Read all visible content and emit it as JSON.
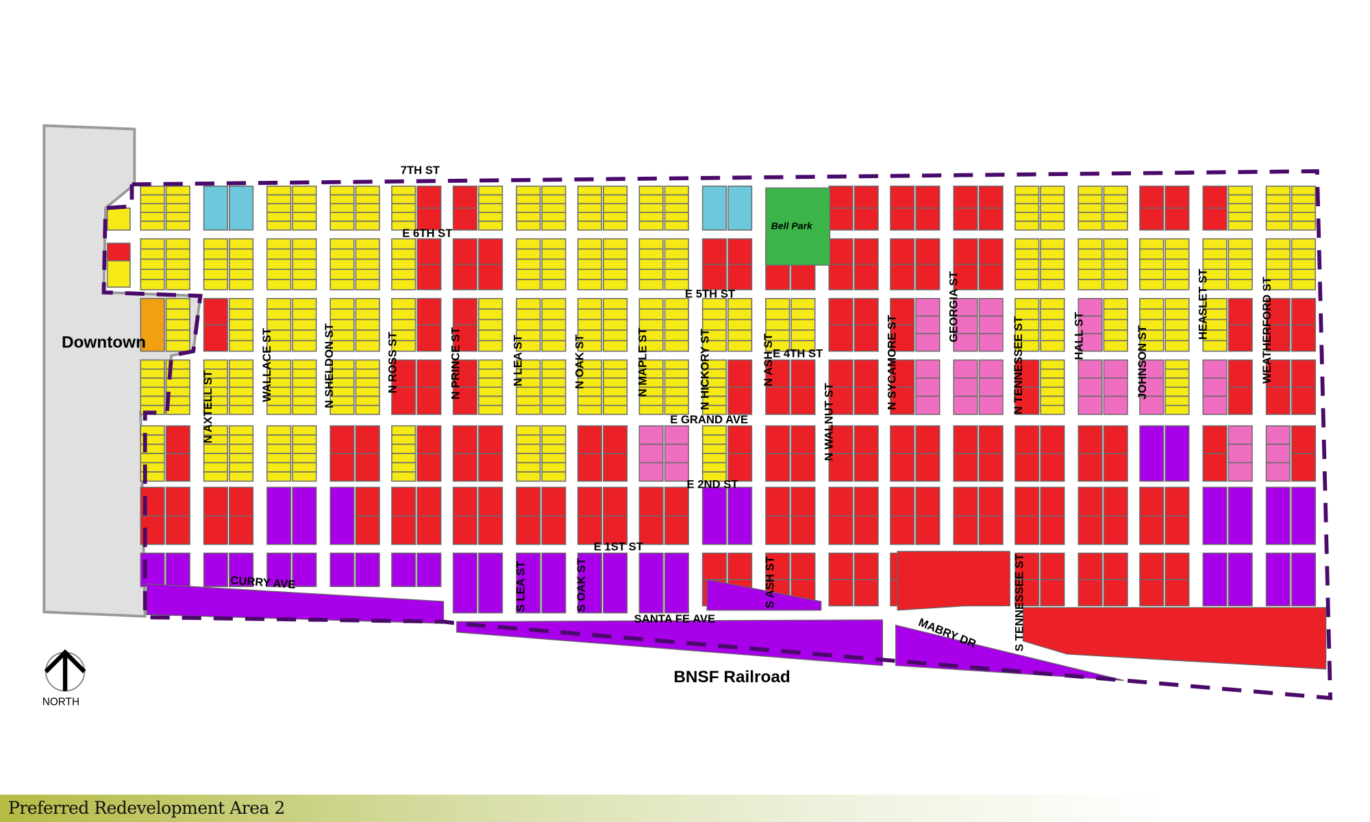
{
  "title": "Preferred Redevelopment Area 2",
  "legend_colors": {
    "Y": "#f5e916",
    "R": "#ec2027",
    "P": "#f06ec1",
    "V": "#a800e8",
    "B": "#6cc8da",
    "G": "#3bb54a",
    "O": "#f0a010"
  },
  "map": {
    "downtown_label": "Downtown",
    "park_label": "Bell Park",
    "railroad_label": "BNSF Railroad",
    "north_label": "NORTH",
    "boundary_color": "#4a0a6a",
    "streets_horizontal": [
      "7TH ST",
      "E 6TH ST",
      "E 5TH ST",
      "E 4TH ST",
      "E GRAND AVE",
      "E 2ND ST",
      "E 1ST ST",
      "CURRY AVE",
      "SANTA FE AVE",
      "MABRY DR"
    ],
    "streets_vertical": [
      "N AXTELL ST",
      "WALLACE ST",
      "N SHELDON ST",
      "N ROSS ST",
      "N PRINCE ST",
      "N LEA ST",
      "N OAK ST",
      "N MAPLE ST",
      "N HICKORY ST",
      "N ASH ST",
      "N WALNUT ST",
      "N SYCAMORE ST",
      "GEORGIA ST",
      "N TENNESSEE ST",
      "HALL ST",
      "JOHNSON ST",
      "HEASLET ST",
      "WEATHERFORD ST",
      "S LEA ST",
      "S OAK ST",
      "S ASH ST",
      "S TENNESSEE ST"
    ],
    "block_land_use": [
      [
        "YY",
        "BB",
        "YY",
        "YY",
        "YR",
        "RY",
        "YY",
        "YY",
        "YY",
        "BB",
        "GG",
        "RR",
        "RR",
        "RR",
        "YY",
        "YY",
        "RR",
        "RY",
        "YY"
      ],
      [
        "YY",
        "YY",
        "YY",
        "YY",
        "YR",
        "RR",
        "YY",
        "YY",
        "YY",
        "RR",
        "RR",
        "RR",
        "RR",
        "RR",
        "YY",
        "YY",
        "YY",
        "YY",
        "YY"
      ],
      [
        "OY",
        "RY",
        "YY",
        "YY",
        "YR",
        "RY",
        "YY",
        "YY",
        "YY",
        "YY",
        "YY",
        "RR",
        "RP",
        "PP",
        "YY",
        "PY",
        "YY",
        "YR",
        "RR"
      ],
      [
        "YY",
        "YY",
        "YY",
        "YY",
        "RR",
        "RY",
        "YY",
        "YY",
        "YY",
        "YR",
        "RR",
        "RR",
        "RP",
        "PP",
        "RY",
        "PP",
        "PY",
        "PR",
        "RR"
      ],
      [
        "YR",
        "YY",
        "YY",
        "RR",
        "YR",
        "RR",
        "YY",
        "RR",
        "PP",
        "YR",
        "RR",
        "RR",
        "RR",
        "RR",
        "RR",
        "RR",
        "VV",
        "RP",
        "PR"
      ],
      [
        "RR",
        "RR",
        "VV",
        "VR",
        "RR",
        "RR",
        "RR",
        "RR",
        "RR",
        "VV",
        "RR",
        "RR",
        "RR",
        "RR",
        "RR",
        "RR",
        "RR",
        "VV",
        "VV"
      ],
      [
        "VV",
        "VV",
        "VV",
        "VV",
        "VV",
        "VV",
        "VV",
        "VV",
        "VV",
        "RR",
        "RR",
        "RR",
        "RR",
        "RR",
        "RR",
        "RR",
        "RR",
        "VV",
        "VV"
      ]
    ]
  }
}
